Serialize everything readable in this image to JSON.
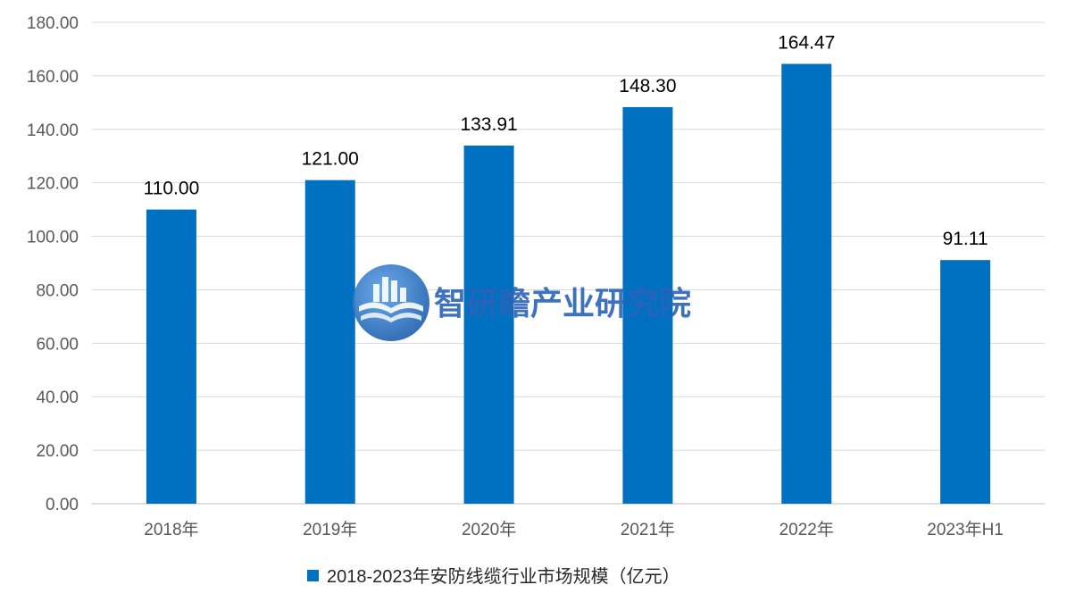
{
  "chart_data": {
    "type": "bar",
    "categories": [
      "2018年",
      "2019年",
      "2020年",
      "2021年",
      "2022年",
      "2023年H1"
    ],
    "series": [
      {
        "name": "2018-2023年安防线缆行业市场规模（亿元）",
        "values": [
          110.0,
          121.0,
          133.91,
          148.3,
          164.47,
          91.11
        ],
        "value_labels": [
          "110.00",
          "121.00",
          "133.91",
          "148.30",
          "164.47",
          "91.11"
        ],
        "color": "#0070C0"
      }
    ],
    "y_ticks": [
      "0.00",
      "20.00",
      "40.00",
      "60.00",
      "80.00",
      "100.00",
      "120.00",
      "140.00",
      "160.00",
      "180.00"
    ],
    "ylim": [
      0,
      180
    ],
    "grid": true,
    "legend_position": "bottom"
  },
  "watermark": {
    "text": "智研瞻产业研究院",
    "icon": "logo-building-book-icon"
  }
}
